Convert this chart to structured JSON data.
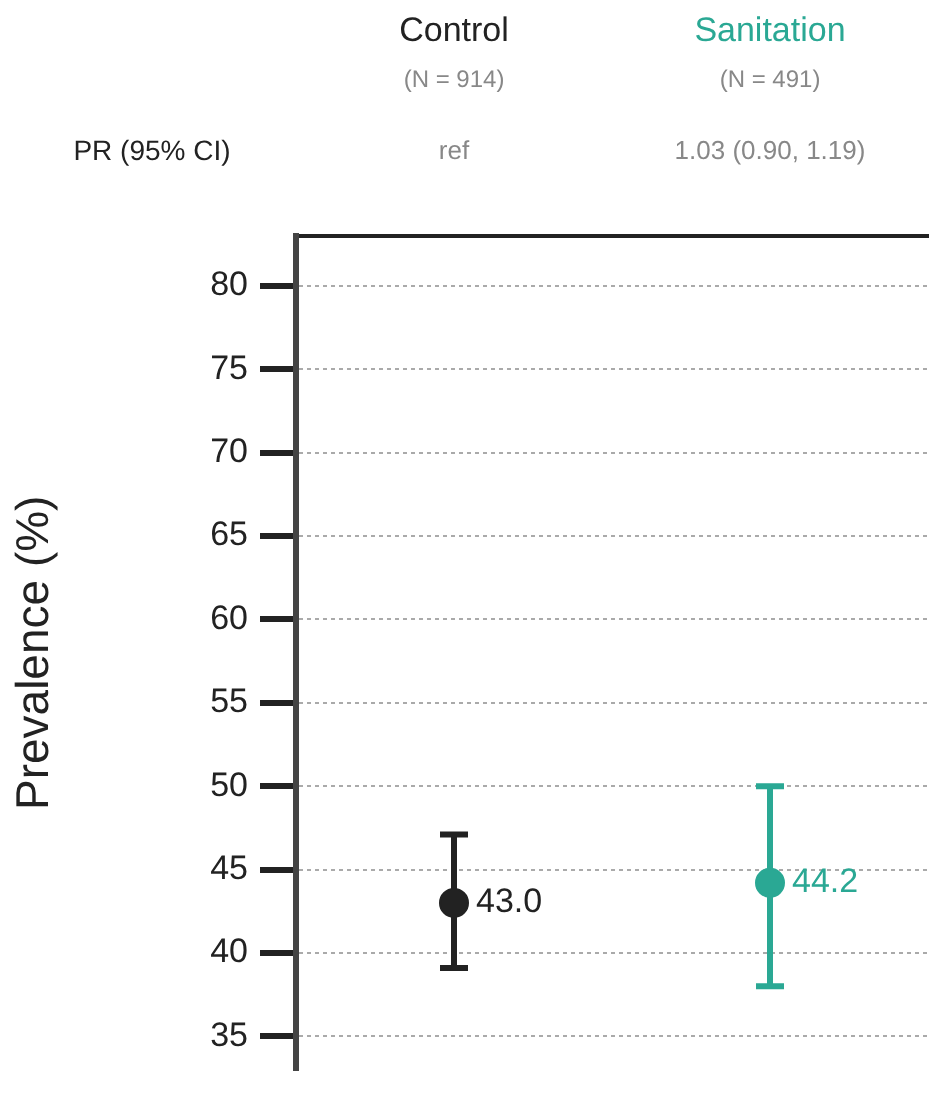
{
  "chart_data": {
    "type": "scatter",
    "categories": [
      "Control",
      "Sanitation"
    ],
    "values": [
      43.0,
      44.2
    ],
    "colors": [
      "#222222",
      "#2aa894"
    ],
    "errors": [
      [
        39.1,
        47.1
      ],
      [
        38.0,
        50.0
      ]
    ],
    "value_labels": [
      "43.0",
      "44.2"
    ],
    "ylabel": "Prevalence (%)",
    "ylim": [
      33,
      83
    ],
    "yticks": [
      35,
      40,
      45,
      50,
      55,
      60,
      65,
      70,
      75,
      80
    ],
    "annotations": [
      "(N = 914)",
      "(N = 491)",
      "PR (95% CI)",
      "ref",
      "1.03 (0.90, 1.19)"
    ],
    "grid": "y",
    "marker": "circle",
    "legend": false
  }
}
